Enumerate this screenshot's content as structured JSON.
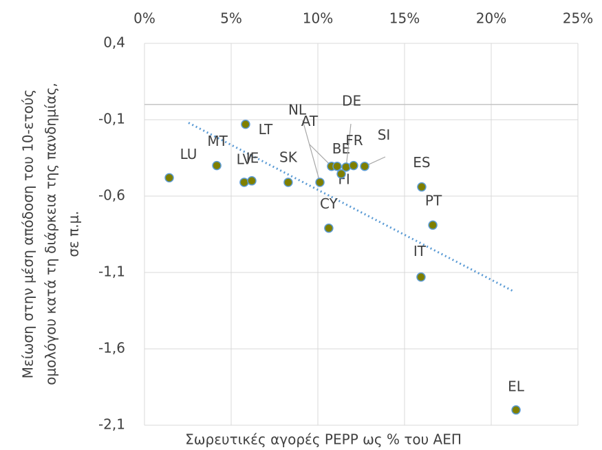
{
  "chart_data": {
    "type": "scatter",
    "x_label": "Σωρευτικές αγορές PEPP ως % του ΑΕΠ",
    "y_label": [
      "Μείωση στην μέση απόδοση του 10-ετούς",
      "ομολόγου κατά τη διάρκεια της πανδημίας,",
      "σε π.μ."
    ],
    "xlim": [
      0,
      25
    ],
    "xticks": [
      {
        "value": 0,
        "label": "0%"
      },
      {
        "value": 5,
        "label": "5%"
      },
      {
        "value": 10,
        "label": "10%"
      },
      {
        "value": 15,
        "label": "15%"
      },
      {
        "value": 20,
        "label": "20%"
      },
      {
        "value": 25,
        "label": "25%"
      }
    ],
    "ylim": [
      -2.1,
      0.4
    ],
    "yticks": [
      {
        "value": 0.4,
        "label": "0,4"
      },
      {
        "value": -0.1,
        "label": "-0,1"
      },
      {
        "value": -0.6,
        "label": "-0,6"
      },
      {
        "value": -1.1,
        "label": "-1,1"
      },
      {
        "value": -1.6,
        "label": "-1,6"
      },
      {
        "value": -2.1,
        "label": "-2,1"
      }
    ],
    "grid": true,
    "series": [
      {
        "color": "#7f7f00",
        "edge_color": "#5b9bd5",
        "labels": [
          "LU",
          "MT",
          "LT",
          "LV",
          "IE",
          "SK",
          "NL",
          "AT",
          "BE",
          "FI",
          "DE",
          "FR",
          "SI",
          "CY",
          "ES",
          "PT",
          "IT",
          "EL"
        ],
        "x": [
          1.43,
          4.17,
          5.83,
          5.75,
          6.19,
          8.29,
          10.12,
          10.79,
          11.11,
          11.35,
          11.63,
          12.06,
          12.7,
          10.63,
          15.99,
          16.63,
          15.95,
          21.43
        ],
        "y": [
          -0.48,
          -0.4,
          -0.13,
          -0.51,
          -0.5,
          -0.51,
          -0.51,
          -0.405,
          -0.405,
          -0.455,
          -0.41,
          -0.4,
          -0.405,
          -0.81,
          -0.54,
          -0.79,
          -1.13,
          -2.0
        ]
      }
    ],
    "trendline": {
      "color": "#5b9bd5",
      "x": [
        2.54,
        21.23
      ],
      "y": [
        -0.12,
        -1.22
      ]
    }
  }
}
